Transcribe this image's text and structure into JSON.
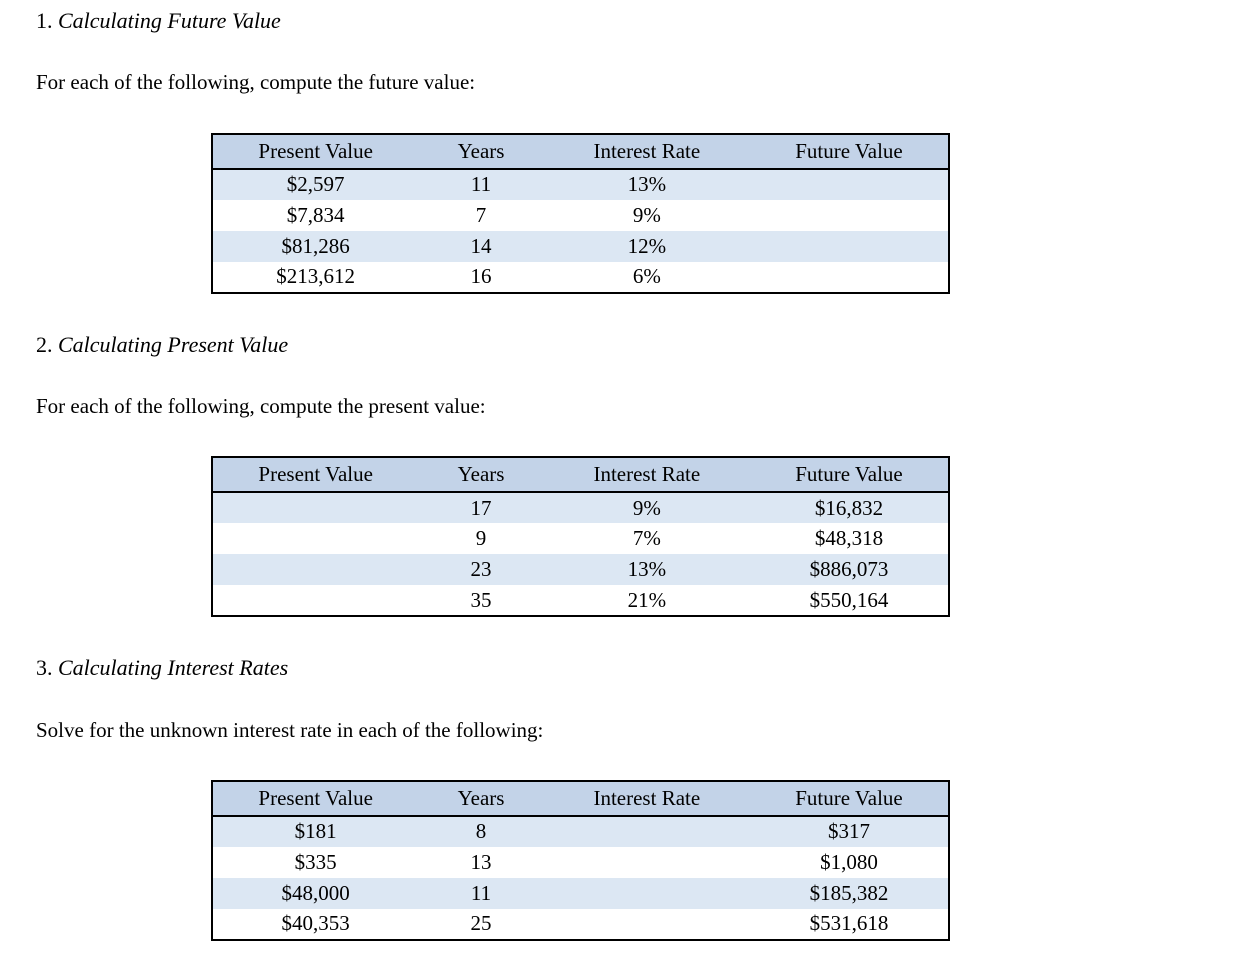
{
  "colors": {
    "header_bg": "#c3d3e8",
    "band_bg": "#dce7f3",
    "border": "#000000",
    "text": "#000000",
    "page_bg": "#ffffff"
  },
  "sections": [
    {
      "number": "1.",
      "title": "Calculating Future Value",
      "instruction": "For each of the following, compute the future value:",
      "table": {
        "headers": [
          "Present Value",
          "Years",
          "Interest Rate",
          "Future Value"
        ],
        "rows": [
          [
            "$2,597",
            "11",
            "13%",
            ""
          ],
          [
            "$7,834",
            "7",
            "9%",
            ""
          ],
          [
            "$81,286",
            "14",
            "12%",
            ""
          ],
          [
            "$213,612",
            "16",
            "6%",
            ""
          ]
        ]
      }
    },
    {
      "number": "2.",
      "title": "Calculating Present Value",
      "instruction": "For each of the following, compute the present value:",
      "table": {
        "headers": [
          "Present Value",
          "Years",
          "Interest Rate",
          "Future Value"
        ],
        "rows": [
          [
            "",
            "17",
            "9%",
            "$16,832"
          ],
          [
            "",
            "9",
            "7%",
            "$48,318"
          ],
          [
            "",
            "23",
            "13%",
            "$886,073"
          ],
          [
            "",
            "35",
            "21%",
            "$550,164"
          ]
        ]
      }
    },
    {
      "number": "3.",
      "title": "Calculating Interest Rates",
      "instruction": "Solve for the unknown interest rate in each of the following:",
      "table": {
        "headers": [
          "Present Value",
          "Years",
          "Interest Rate",
          "Future Value"
        ],
        "rows": [
          [
            "$181",
            "8",
            "",
            "$317"
          ],
          [
            "$335",
            "13",
            "",
            "$1,080"
          ],
          [
            "$48,000",
            "11",
            "",
            "$185,382"
          ],
          [
            "$40,353",
            "25",
            "",
            "$531,618"
          ]
        ]
      }
    }
  ]
}
